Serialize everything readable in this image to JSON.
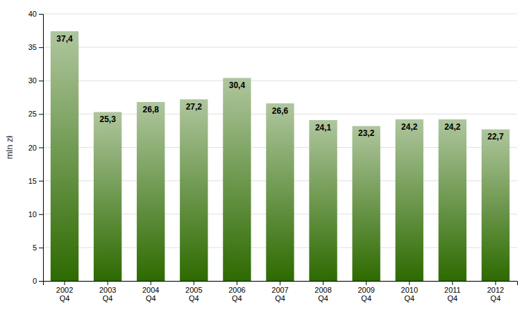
{
  "chart_data": {
    "type": "bar",
    "categories": [
      "2002\nQ4",
      "2003\nQ4",
      "2004\nQ4",
      "2005\nQ4",
      "2006\nQ4",
      "2007\nQ4",
      "2008\nQ4",
      "2009\nQ4",
      "2010\nQ4",
      "2011\nQ4",
      "2012\nQ4"
    ],
    "values": [
      37.4,
      25.3,
      26.8,
      27.2,
      30.4,
      26.6,
      24.1,
      23.2,
      24.2,
      24.2,
      22.7
    ],
    "value_labels": [
      "37,4",
      "25,3",
      "26,8",
      "27,2",
      "30,4",
      "26,6",
      "24,1",
      "23,2",
      "24,2",
      "24,2",
      "22,7"
    ],
    "data_labels": true,
    "color": "#2d6a00",
    "ylabel": "mln zł",
    "ylim": [
      0,
      40
    ],
    "yticks": [
      0,
      5,
      10,
      15,
      20,
      25,
      30,
      35,
      40
    ],
    "grid": true
  }
}
